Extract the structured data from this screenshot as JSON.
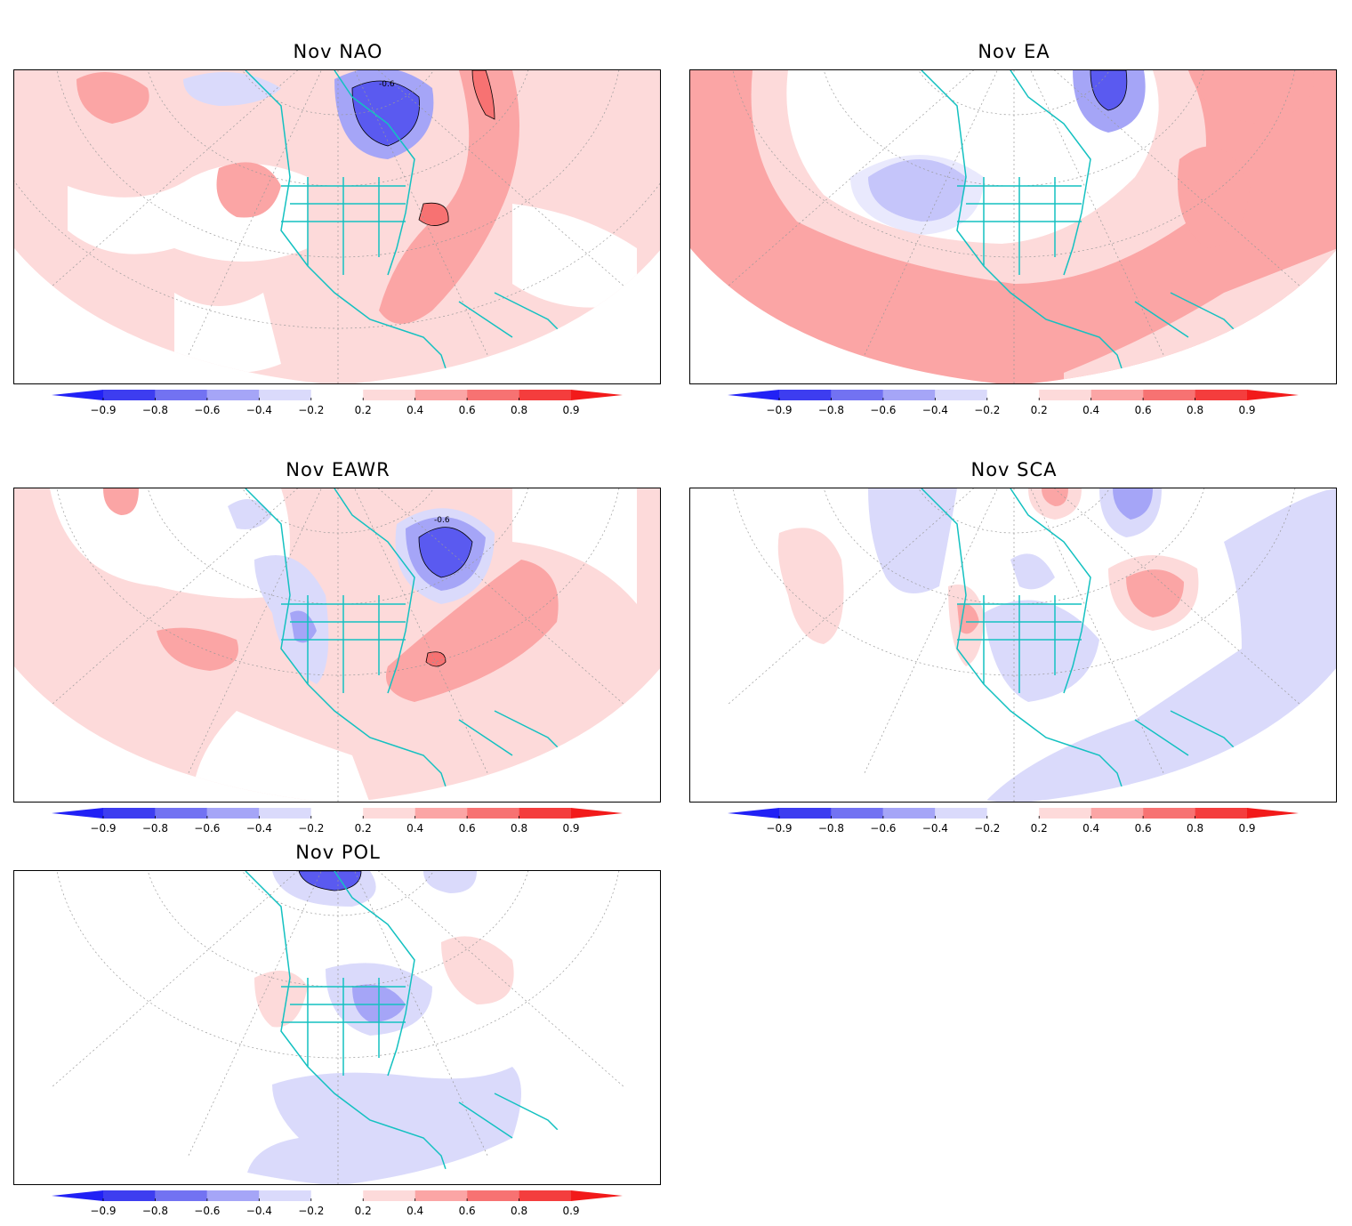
{
  "panels": [
    {
      "id": "nao",
      "title": "Nov NAO",
      "contour_label": "-0.6"
    },
    {
      "id": "ea",
      "title": "Nov EA",
      "contour_label": ""
    },
    {
      "id": "eawr",
      "title": "Nov EAWR",
      "contour_label": "-0.6"
    },
    {
      "id": "sca",
      "title": "Nov SCA",
      "contour_label": ""
    },
    {
      "id": "pol",
      "title": "Nov POL",
      "contour_label": ""
    }
  ],
  "colorbar": {
    "ticks": [
      "-0.9",
      "-0.8",
      "-0.6",
      "-0.4",
      "-0.2",
      "0.2",
      "0.4",
      "0.6",
      "0.8",
      "0.9"
    ],
    "colors": [
      "#2121f5",
      "#3d3df0",
      "#7272f2",
      "#a5a5f7",
      "#dadafb",
      "#ffffff",
      "#fddada",
      "#fba5a5",
      "#f77272",
      "#f43d3d",
      "#f21a1a"
    ]
  },
  "colors": {
    "coast": "#14c1c1",
    "grid": "#999999",
    "pos1": "#fddada",
    "pos2": "#fba5a5",
    "pos3": "#f77272",
    "neg1": "#dadafb",
    "neg2": "#a5a5f7",
    "neg3": "#5a5af0"
  }
}
